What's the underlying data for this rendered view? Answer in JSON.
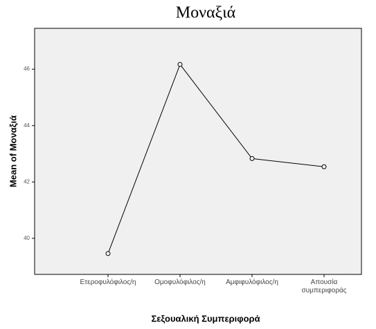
{
  "chart_data": {
    "type": "line",
    "title": "Μοναξιά",
    "x_label": "Σεξουαλική Συμπεριφορά",
    "y_label": "Mean of Μοναξιά",
    "categories": [
      "Ετεροφυλόφιλος/η",
      "Ομοφυλόφιλος/η",
      "Αμφιφυλόφιλος/η",
      "Απουσία συμπεριφοράς"
    ],
    "values": [
      39.46,
      46.17,
      42.83,
      42.54
    ],
    "color": "#000000",
    "ylim": [
      38.72,
      47.45
    ],
    "yticks": [
      40,
      42,
      44,
      46
    ],
    "grid": false
  }
}
